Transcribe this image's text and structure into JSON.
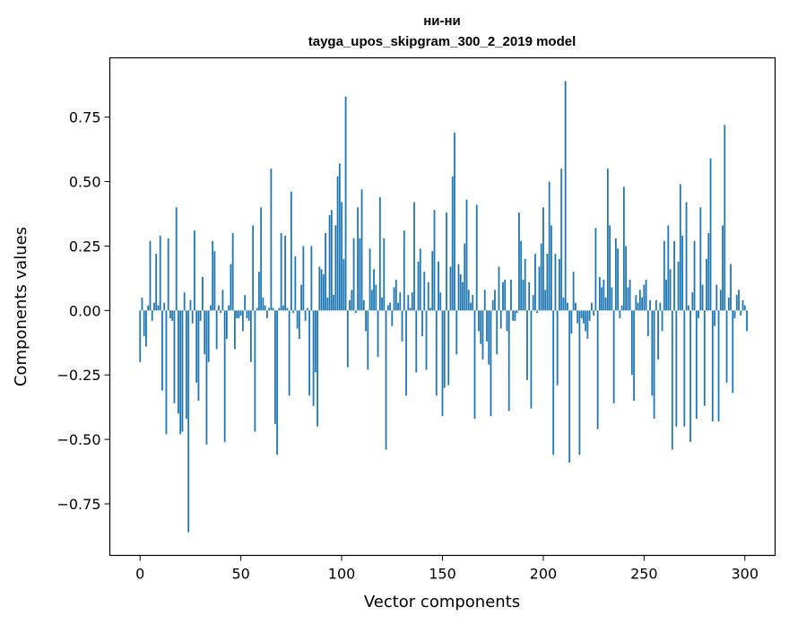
{
  "chart_data": {
    "type": "bar",
    "title": "ни-ни",
    "subtitle": "tayga_upos_skipgram_300_2_2019 model",
    "xlabel": "Vector components",
    "ylabel": "Components values",
    "xlim": [
      -15,
      315
    ],
    "ylim": [
      -0.95,
      0.98
    ],
    "xticks": [
      0,
      50,
      100,
      150,
      200,
      250,
      300
    ],
    "yticks": [
      -0.75,
      -0.5,
      -0.25,
      0.0,
      0.25,
      0.5,
      0.75
    ],
    "ytick_labels": [
      "−0.75",
      "−0.50",
      "−0.25",
      "0.00",
      "0.25",
      "0.50",
      "0.75"
    ],
    "bar_color": "#1f77b4",
    "grid": false,
    "legend": "none",
    "values": [
      -0.2,
      0.05,
      -0.1,
      -0.14,
      0.02,
      0.27,
      -0.04,
      0.03,
      0.22,
      0.02,
      0.29,
      -0.31,
      0.03,
      -0.48,
      0.28,
      -0.03,
      -0.04,
      -0.36,
      0.4,
      -0.4,
      -0.48,
      -0.47,
      0.07,
      -0.42,
      -0.86,
      0.04,
      -0.05,
      0.31,
      -0.28,
      -0.35,
      -0.04,
      0.13,
      -0.17,
      -0.52,
      -0.2,
      0.02,
      0.27,
      0.23,
      -0.15,
      0.02,
      -0.01,
      0.08,
      -0.51,
      -0.11,
      0.02,
      0.18,
      0.3,
      -0.15,
      -0.03,
      -0.03,
      -0.02,
      -0.08,
      0.06,
      -0.03,
      -0.04,
      -0.2,
      0.33,
      -0.47,
      0.01,
      0.15,
      0.4,
      0.05,
      0.02,
      -0.03,
      0.01,
      0.55,
      0.01,
      -0.44,
      -0.56,
      0.01,
      0.3,
      0.02,
      0.29,
      0.01,
      -0.33,
      0.46,
      -0.01,
      0.21,
      -0.07,
      -0.11,
      0.1,
      0.25,
      -0.04,
      0.01,
      -0.33,
      0.25,
      -0.37,
      -0.24,
      -0.45,
      0.17,
      0.16,
      0.14,
      0.3,
      0.05,
      0.37,
      0.39,
      0.06,
      0.33,
      0.52,
      0.57,
      0.42,
      0.2,
      0.83,
      -0.22,
      0.04,
      0.08,
      0.28,
      -0.01,
      0.4,
      0.28,
      0.47,
      0.04,
      -0.08,
      -0.23,
      0.24,
      0.08,
      0.16,
      0.1,
      -0.18,
      0.44,
      0.05,
      0.28,
      -0.54,
      0.02,
      0.03,
      -0.06,
      0.09,
      0.12,
      0.03,
      0.07,
      -0.12,
      0.31,
      -0.33,
      0.06,
      0.01,
      0.07,
      0.42,
      -0.24,
      0.19,
      0.24,
      -0.1,
      0.15,
      -0.23,
      0.11,
      0.01,
      0.23,
      0.39,
      -0.33,
      0.19,
      0.07,
      -0.41,
      -0.3,
      0.38,
      -0.29,
      0.17,
      0.52,
      0.69,
      -0.17,
      0.18,
      0.14,
      0.11,
      0.26,
      0.43,
      0.08,
      0.03,
      0.06,
      -0.42,
      0.41,
      -0.08,
      -0.13,
      -0.19,
      0.08,
      -0.12,
      -0.21,
      -0.41,
      0.04,
      0.08,
      -0.17,
      0.17,
      -0.07,
      0.11,
      0.12,
      -0.08,
      -0.39,
      0.12,
      -0.04,
      -0.04,
      -0.01,
      0.38,
      0.27,
      0.12,
      0.2,
      -0.27,
      0.11,
      -0.38,
      0.06,
      0.22,
      -0.01,
      0.17,
      0.26,
      0.4,
      0.08,
      0.22,
      0.5,
      0.33,
      -0.56,
      0.22,
      -0.29,
      0.2,
      0.55,
      0.05,
      0.89,
      0.03,
      -0.59,
      -0.09,
      0.15,
      0.03,
      -0.05,
      -0.56,
      -0.03,
      -0.05,
      -0.08,
      -0.11,
      -0.04,
      0.03,
      -0.02,
      0.32,
      -0.46,
      0.13,
      0.09,
      0.12,
      0.05,
      0.55,
      0.33,
      0.09,
      -0.36,
      0.28,
      0.24,
      -0.03,
      0.02,
      0.48,
      0.25,
      0.09,
      0.12,
      -0.25,
      -0.35,
      0.06,
      0.03,
      0.08,
      0.05,
      0.1,
      0.12,
      -0.1,
      0.04,
      -0.33,
      -0.42,
      0.04,
      -0.19,
      0.03,
      -0.08,
      0.27,
      0.12,
      0.33,
      0.16,
      -0.54,
      0.27,
      -0.45,
      0.19,
      0.49,
      0.29,
      -0.45,
      0.42,
      0.02,
      -0.51,
      0.07,
      0.27,
      -0.42,
      -0.03,
      0.4,
      0.1,
      -0.37,
      0.2,
      0.3,
      0.59,
      -0.43,
      -0.06,
      0.1,
      -0.43,
      0.08,
      0.33,
      0.72,
      -0.28,
      0.05,
      0.18,
      -0.32,
      -0.03,
      0.06,
      0.08,
      -0.02,
      0.04,
      0.02,
      -0.08
    ]
  }
}
